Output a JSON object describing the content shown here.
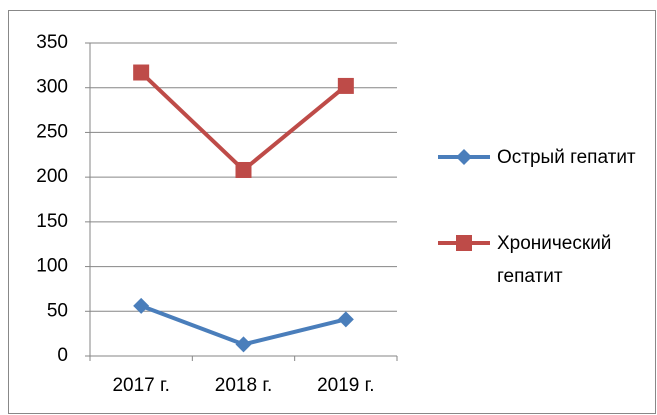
{
  "chart_data": {
    "type": "line",
    "categories": [
      "2017 г.",
      "2018 г.",
      "2019 г."
    ],
    "series": [
      {
        "name": "Острый гепатит",
        "color": "#4a7ebb",
        "marker": "diamond",
        "values": [
          56,
          13,
          41
        ]
      },
      {
        "name": "Хронический гепатит",
        "color": "#be4b48",
        "marker": "square",
        "values": [
          317,
          208,
          302
        ]
      }
    ],
    "ylim": [
      0,
      350
    ],
    "yticks": [
      0,
      50,
      100,
      150,
      200,
      250,
      300,
      350
    ],
    "grid": true,
    "legend": "right"
  }
}
